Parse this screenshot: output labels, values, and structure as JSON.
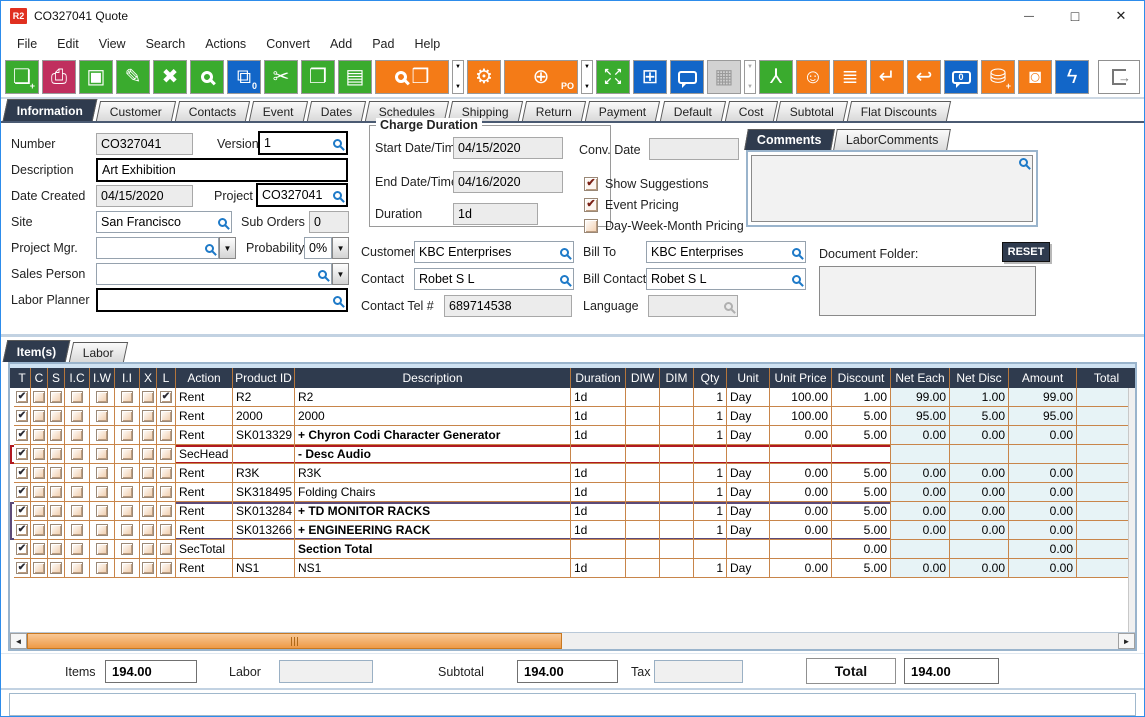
{
  "window": {
    "title": "CO327041 Quote",
    "app_badge": "R2"
  },
  "menu": {
    "items": [
      "File",
      "Edit",
      "View",
      "Search",
      "Actions",
      "Convert",
      "Add",
      "Pad",
      "Help"
    ]
  },
  "toolbar": {
    "buttons": [
      {
        "name": "new-document",
        "color": "green",
        "kind": "glyph",
        "glyph": "❏",
        "sub": "+"
      },
      {
        "name": "print",
        "color": "crimson",
        "kind": "glyph",
        "glyph": "⎙"
      },
      {
        "name": "save",
        "color": "green",
        "kind": "glyph",
        "glyph": "▣"
      },
      {
        "name": "edit",
        "color": "green",
        "kind": "glyph",
        "glyph": "✎"
      },
      {
        "name": "delete",
        "color": "green",
        "kind": "glyph",
        "glyph": "✖"
      },
      {
        "name": "search",
        "color": "green",
        "kind": "mag"
      },
      {
        "name": "copies",
        "color": "blue",
        "kind": "glyph",
        "glyph": "⧉",
        "sub": "0"
      },
      {
        "name": "cut",
        "color": "green",
        "kind": "glyph",
        "glyph": "✂"
      },
      {
        "name": "copy",
        "color": "green",
        "kind": "glyph",
        "glyph": "❐"
      },
      {
        "name": "paste",
        "color": "green",
        "kind": "glyph",
        "glyph": "▤"
      },
      {
        "name": "find-item",
        "color": "orange",
        "kind": "mag-box",
        "wide": true
      },
      {
        "name": "find-item-options",
        "kind": "dd"
      },
      {
        "name": "gears",
        "color": "orange",
        "kind": "glyph",
        "glyph": "⚙"
      },
      {
        "name": "add-po-cart",
        "color": "orange",
        "kind": "glyph",
        "glyph": "⊕",
        "sub": "PO",
        "wide": true
      },
      {
        "name": "add-po-options",
        "kind": "dd"
      },
      {
        "name": "expand",
        "color": "green",
        "kind": "expand"
      },
      {
        "name": "modules",
        "color": "blue",
        "kind": "glyph",
        "glyph": "⊞"
      },
      {
        "name": "chat",
        "color": "blue",
        "kind": "bubble"
      },
      {
        "name": "calendar",
        "color": "gray",
        "kind": "glyph",
        "glyph": "▦"
      },
      {
        "name": "calendar-options",
        "kind": "dd",
        "disabled": true
      },
      {
        "name": "org-tree",
        "color": "green",
        "kind": "glyph",
        "glyph": "⅄"
      },
      {
        "name": "smiley",
        "color": "orange",
        "kind": "glyph",
        "glyph": "☺"
      },
      {
        "name": "scroll-list",
        "color": "orange",
        "kind": "glyph",
        "glyph": "≣"
      },
      {
        "name": "journal",
        "color": "orange",
        "kind": "glyph",
        "glyph": "↵"
      },
      {
        "name": "exchange-box",
        "color": "orange",
        "kind": "glyph",
        "glyph": "↩"
      },
      {
        "name": "comment-zero",
        "color": "blue",
        "kind": "bubble",
        "text": "0"
      },
      {
        "name": "add-funds",
        "color": "orange",
        "kind": "glyph",
        "glyph": "⛁",
        "sub": "+"
      },
      {
        "name": "vault",
        "color": "orange",
        "kind": "glyph",
        "glyph": "◙"
      },
      {
        "name": "flash",
        "color": "blue",
        "kind": "glyph",
        "glyph": "ϟ"
      }
    ]
  },
  "tabs": {
    "selected": "Information",
    "items": [
      "Information",
      "Customer",
      "Contacts",
      "Event",
      "Dates",
      "Schedules",
      "Shipping",
      "Return",
      "Payment",
      "Default",
      "Cost",
      "Subtotal",
      "Flat Discounts"
    ]
  },
  "form": {
    "number": {
      "label": "Number",
      "value": "CO327041"
    },
    "version": {
      "label": "Version",
      "value": "1"
    },
    "description": {
      "label": "Description",
      "value": "Art Exhibition"
    },
    "date_created": {
      "label": "Date Created",
      "value": "04/15/2020"
    },
    "project": {
      "label": "Project",
      "value": "CO327041"
    },
    "site": {
      "label": "Site",
      "value": "San Francisco"
    },
    "sub_orders": {
      "label": "Sub Orders",
      "value": "0"
    },
    "project_mgr": {
      "label": "Project Mgr.",
      "value": ""
    },
    "probability": {
      "label": "Probability",
      "value": "0%"
    },
    "sales_person": {
      "label": "Sales Person",
      "value": ""
    },
    "labor_planner": {
      "label": "Labor Planner",
      "value": ""
    }
  },
  "charge_duration": {
    "title": "Charge Duration",
    "start": {
      "label": "Start Date/Time",
      "value": "04/15/2020"
    },
    "end": {
      "label": "End Date/Time",
      "value": "04/16/2020"
    },
    "duration": {
      "label": "Duration",
      "value": "1d"
    }
  },
  "conv_date": {
    "label": "Conv. Date",
    "value": ""
  },
  "options": [
    {
      "label": "Show Suggestions",
      "checked": true
    },
    {
      "label": "Event Pricing",
      "checked": true
    },
    {
      "label": "Day-Week-Month Pricing",
      "checked": false
    }
  ],
  "parties": {
    "customer": {
      "label": "Customer",
      "value": "KBC Enterprises"
    },
    "bill_to": {
      "label": "Bill To",
      "value": "KBC Enterprises"
    },
    "contact": {
      "label": "Contact",
      "value": "Robet S L"
    },
    "bill_contact": {
      "label": "Bill Contact",
      "value": "Robet S L"
    },
    "contact_tel": {
      "label": "Contact Tel #",
      "value": "689714538"
    },
    "language": {
      "label": "Language",
      "value": ""
    }
  },
  "comments": {
    "selected": "Comments",
    "tabs": [
      "Comments",
      "LaborComments"
    ],
    "text": ""
  },
  "document_folder": {
    "label": "Document Folder:",
    "reset_label": "RESET",
    "value": ""
  },
  "items_panel": {
    "selected": "Item(s)",
    "tabs": [
      "Item(s)",
      "Labor"
    ]
  },
  "table": {
    "columns": [
      "T",
      "C",
      "S",
      "I.C",
      "I.W",
      "I.I",
      "X",
      "L",
      "Action",
      "Product ID",
      "Description",
      "Duration",
      "DIW",
      "DIM",
      "Qty",
      "Unit",
      "Unit Price",
      "Discount",
      "Net Each",
      "Net Disc",
      "Amount",
      "Total"
    ],
    "rows": [
      {
        "checks": [
          1,
          0,
          0,
          0,
          0,
          0,
          0,
          1
        ],
        "action": "Rent",
        "product_id": "R2",
        "description": "R2",
        "bold": false,
        "duration": "1d",
        "diw": "",
        "dim": "",
        "qty": "1",
        "unit": "Day",
        "unit_price": "100.00",
        "discount": "1.00",
        "net_each": "99.00",
        "net_disc": "1.00",
        "amount": "99.00",
        "total": "",
        "highlight": null
      },
      {
        "checks": [
          1,
          0,
          0,
          0,
          0,
          0,
          0,
          0
        ],
        "action": "Rent",
        "product_id": "2000",
        "description": "2000",
        "bold": false,
        "duration": "1d",
        "diw": "",
        "dim": "",
        "qty": "1",
        "unit": "Day",
        "unit_price": "100.00",
        "discount": "5.00",
        "net_each": "95.00",
        "net_disc": "5.00",
        "amount": "95.00",
        "total": "",
        "highlight": null
      },
      {
        "checks": [
          1,
          0,
          0,
          0,
          0,
          0,
          0,
          0
        ],
        "action": "Rent",
        "product_id": "SK013329",
        "description": "+  Chyron Codi Character Generator",
        "bold": true,
        "duration": "1d",
        "diw": "",
        "dim": "",
        "qty": "1",
        "unit": "Day",
        "unit_price": "0.00",
        "discount": "5.00",
        "net_each": "0.00",
        "net_disc": "0.00",
        "amount": "0.00",
        "total": "",
        "highlight": null
      },
      {
        "checks": [
          1,
          0,
          0,
          0,
          0,
          0,
          0,
          0
        ],
        "action": "SecHead",
        "product_id": "",
        "description": "-  Desc Audio",
        "bold": true,
        "duration": "",
        "diw": "",
        "dim": "",
        "qty": "",
        "unit": "",
        "unit_price": "",
        "discount": "",
        "net_each": "",
        "net_disc": "",
        "amount": "",
        "total": "",
        "highlight": "red"
      },
      {
        "checks": [
          1,
          0,
          0,
          0,
          0,
          0,
          0,
          0
        ],
        "action": "Rent",
        "product_id": "R3K",
        "description": "R3K",
        "bold": false,
        "duration": "1d",
        "diw": "",
        "dim": "",
        "qty": "1",
        "unit": "Day",
        "unit_price": "0.00",
        "discount": "5.00",
        "net_each": "0.00",
        "net_disc": "0.00",
        "amount": "0.00",
        "total": "",
        "highlight": null
      },
      {
        "checks": [
          1,
          0,
          0,
          0,
          0,
          0,
          0,
          0
        ],
        "action": "Rent",
        "product_id": "SK318495",
        "description": "Folding Chairs",
        "bold": false,
        "duration": "1d",
        "diw": "",
        "dim": "",
        "qty": "1",
        "unit": "Day",
        "unit_price": "0.00",
        "discount": "5.00",
        "net_each": "0.00",
        "net_disc": "0.00",
        "amount": "0.00",
        "total": "",
        "highlight": null
      },
      {
        "checks": [
          1,
          0,
          0,
          0,
          0,
          0,
          0,
          0
        ],
        "action": "Rent",
        "product_id": "SK013284",
        "description": "+  TD MONITOR RACKS",
        "bold": true,
        "duration": "1d",
        "diw": "",
        "dim": "",
        "qty": "1",
        "unit": "Day",
        "unit_price": "0.00",
        "discount": "5.00",
        "net_each": "0.00",
        "net_disc": "0.00",
        "amount": "0.00",
        "total": "",
        "highlight": "p-start"
      },
      {
        "checks": [
          1,
          0,
          0,
          0,
          0,
          0,
          0,
          0
        ],
        "action": "Rent",
        "product_id": "SK013266",
        "description": "+  ENGINEERING RACK",
        "bold": true,
        "duration": "1d",
        "diw": "",
        "dim": "",
        "qty": "1",
        "unit": "Day",
        "unit_price": "0.00",
        "discount": "5.00",
        "net_each": "0.00",
        "net_disc": "0.00",
        "amount": "0.00",
        "total": "",
        "highlight": "p-end"
      },
      {
        "checks": [
          1,
          0,
          0,
          0,
          0,
          0,
          0,
          0
        ],
        "action": "SecTotal",
        "product_id": "",
        "description": "Section Total",
        "bold": true,
        "duration": "",
        "diw": "",
        "dim": "",
        "qty": "",
        "unit": "",
        "unit_price": "",
        "discount": "0.00",
        "net_each": "",
        "net_disc": "",
        "amount": "0.00",
        "total": "",
        "highlight": null
      },
      {
        "checks": [
          1,
          0,
          0,
          0,
          0,
          0,
          0,
          0
        ],
        "action": "Rent",
        "product_id": "NS1",
        "description": "NS1",
        "bold": false,
        "duration": "1d",
        "diw": "",
        "dim": "",
        "qty": "1",
        "unit": "Day",
        "unit_price": "0.00",
        "discount": "5.00",
        "net_each": "0.00",
        "net_disc": "0.00",
        "amount": "0.00",
        "total": "",
        "highlight": null
      }
    ]
  },
  "totals": {
    "items": {
      "label": "Items",
      "value": "194.00"
    },
    "labor": {
      "label": "Labor",
      "value": ""
    },
    "subtotal": {
      "label": "Subtotal",
      "value": "194.00"
    },
    "tax": {
      "label": "Tax",
      "value": ""
    },
    "total": {
      "label": "Total",
      "value": "194.00"
    }
  }
}
